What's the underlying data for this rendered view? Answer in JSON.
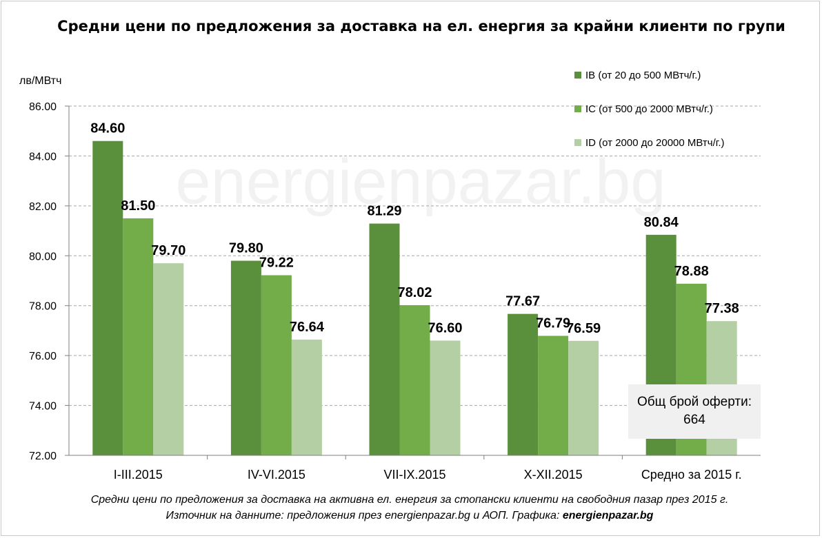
{
  "colors": {
    "series_ib": "#5a8f3c",
    "series_ic": "#72ad4a",
    "series_id": "#b4cfa4",
    "grid": "#a6a6a6",
    "watermark": "#f2f2f2"
  },
  "watermark": "energienpazar.bg",
  "note": {
    "line1": "Общ брой оферти:",
    "line2": "664"
  },
  "footnote": {
    "line1": "Средни цени по предложения за доставка на активна ел. енергия за стопански клиенти на свободния пазар през 2015 г.",
    "line2_prefix": "Източник на данните: предложения през energienpazar.bg и АОП. Графика: ",
    "line2_bold": "energienpazar.bg"
  },
  "chart_data": {
    "type": "bar",
    "title": "Средни цени по предложения за доставка на ел. енергия за крайни клиенти по групи",
    "ylabel": "лв/МВтч",
    "ylim": [
      72,
      86
    ],
    "yticks": [
      "72.00",
      "74.00",
      "76.00",
      "78.00",
      "80.00",
      "82.00",
      "84.00",
      "86.00"
    ],
    "grid": true,
    "legend_position": "top-right",
    "categories": [
      "I-III.2015",
      "IV-VI.2015",
      "VII-IX.2015",
      "X-XII.2015",
      "Средно за 2015 г."
    ],
    "series": [
      {
        "name": "IB (от 20 до 500 МВтч/г.)",
        "values": [
          84.6,
          79.8,
          81.29,
          77.67,
          80.84
        ],
        "labels": [
          "84.60",
          "79.80",
          "81.29",
          "77.67",
          "80.84"
        ]
      },
      {
        "name": "IC (от 500 до 2000 МВтч/г.)",
        "values": [
          81.5,
          79.22,
          78.02,
          76.79,
          78.88
        ],
        "labels": [
          "81.50",
          "79.22",
          "78.02",
          "76.79",
          "78.88"
        ]
      },
      {
        "name": "ID (от 2000 до 20000 МВтч/г.)",
        "values": [
          79.7,
          76.64,
          76.6,
          76.59,
          77.38
        ],
        "labels": [
          "79.70",
          "76.64",
          "76.60",
          "76.59",
          "77.38"
        ]
      }
    ]
  }
}
